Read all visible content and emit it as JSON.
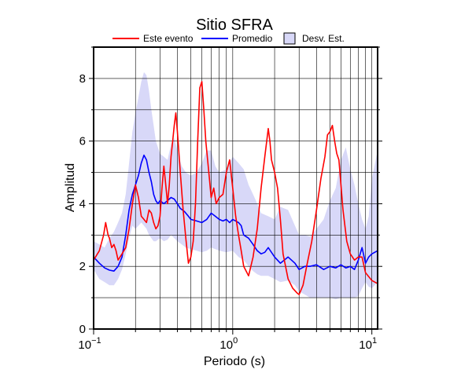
{
  "chart_data": {
    "type": "line",
    "title": "Sitio SFRA",
    "xlabel": "Periodo (s)",
    "ylabel": "Amplitud",
    "xscale": "log",
    "xlim": [
      0.1,
      11
    ],
    "ylim": [
      0,
      9
    ],
    "x_ticks": [
      {
        "base": "10",
        "exp": "−1"
      },
      {
        "base": "10",
        "exp": "0"
      },
      {
        "base": "10",
        "exp": "1"
      }
    ],
    "y_ticks": [
      "0",
      "2",
      "4",
      "6",
      "8"
    ],
    "grid": true,
    "legend": {
      "position": "top",
      "entries": [
        "Este evento",
        "Promedio",
        "Desv. Est."
      ]
    },
    "colors": {
      "event": "#ff0000",
      "mean": "#0000ff",
      "band_fill": "#d8d8f8",
      "band_stroke": "#000000"
    },
    "series": [
      {
        "name": "Este evento",
        "x": [
          0.1,
          0.11,
          0.118,
          0.122,
          0.127,
          0.13,
          0.135,
          0.14,
          0.145,
          0.15,
          0.16,
          0.17,
          0.18,
          0.19,
          0.2,
          0.21,
          0.22,
          0.23,
          0.24,
          0.25,
          0.26,
          0.27,
          0.28,
          0.29,
          0.3,
          0.31,
          0.32,
          0.33,
          0.34,
          0.35,
          0.36,
          0.37,
          0.38,
          0.39,
          0.4,
          0.42,
          0.44,
          0.46,
          0.48,
          0.5,
          0.52,
          0.54,
          0.56,
          0.58,
          0.6,
          0.62,
          0.64,
          0.66,
          0.68,
          0.7,
          0.73,
          0.76,
          0.8,
          0.85,
          0.9,
          0.95,
          1.0,
          1.05,
          1.1,
          1.15,
          1.2,
          1.3,
          1.4,
          1.5,
          1.6,
          1.7,
          1.8,
          1.85,
          1.9,
          2.0,
          2.1,
          2.2,
          2.3,
          2.5,
          2.7,
          2.9,
          3.0,
          3.2,
          3.4,
          3.7,
          4.0,
          4.3,
          4.6,
          4.8,
          5.0,
          5.2,
          5.4,
          5.6,
          5.8,
          6.2,
          6.6,
          7.0,
          7.5,
          8.0,
          8.5,
          9.0,
          10.0,
          11.0
        ],
        "y": [
          2.2,
          2.5,
          3.0,
          3.4,
          3.0,
          2.9,
          2.6,
          2.7,
          2.5,
          2.2,
          2.4,
          2.6,
          3.2,
          4.0,
          4.6,
          4.2,
          3.6,
          3.5,
          3.4,
          3.8,
          3.7,
          3.4,
          3.2,
          3.3,
          3.6,
          4.5,
          5.2,
          4.6,
          4.0,
          4.6,
          5.5,
          6.0,
          6.5,
          6.9,
          6.3,
          5.0,
          3.8,
          2.9,
          2.1,
          2.3,
          2.8,
          4.0,
          6.0,
          7.7,
          7.9,
          7.0,
          6.0,
          5.4,
          4.8,
          4.2,
          4.5,
          4.0,
          4.2,
          4.3,
          5.0,
          5.4,
          4.5,
          3.6,
          3.0,
          2.5,
          2.0,
          1.7,
          2.3,
          3.2,
          4.5,
          5.5,
          6.4,
          6.0,
          5.4,
          5.0,
          4.5,
          3.5,
          2.4,
          1.6,
          1.3,
          1.15,
          1.1,
          1.4,
          2.0,
          2.8,
          3.8,
          4.8,
          5.5,
          6.2,
          6.3,
          6.5,
          6.0,
          5.6,
          5.4,
          3.8,
          2.8,
          2.4,
          2.2,
          2.3,
          2.3,
          1.8,
          1.55,
          1.45
        ]
      },
      {
        "name": "Promedio",
        "x": [
          0.1,
          0.11,
          0.12,
          0.13,
          0.14,
          0.15,
          0.16,
          0.17,
          0.18,
          0.19,
          0.2,
          0.21,
          0.22,
          0.23,
          0.24,
          0.25,
          0.26,
          0.27,
          0.28,
          0.29,
          0.3,
          0.32,
          0.34,
          0.36,
          0.38,
          0.4,
          0.42,
          0.45,
          0.48,
          0.5,
          0.55,
          0.6,
          0.65,
          0.7,
          0.75,
          0.8,
          0.85,
          0.9,
          0.95,
          1.0,
          1.05,
          1.1,
          1.15,
          1.2,
          1.3,
          1.4,
          1.5,
          1.6,
          1.7,
          1.8,
          2.0,
          2.2,
          2.5,
          2.8,
          3.0,
          3.3,
          3.6,
          4.0,
          4.5,
          5.0,
          5.5,
          6.0,
          6.5,
          7.0,
          7.5,
          8.0,
          8.5,
          9.0,
          9.5,
          10.0,
          11.0
        ],
        "y": [
          2.3,
          2.1,
          1.95,
          1.88,
          1.85,
          2.0,
          2.3,
          3.0,
          3.8,
          4.3,
          4.6,
          4.9,
          5.3,
          5.55,
          5.4,
          5.0,
          4.7,
          4.3,
          4.1,
          4.0,
          4.1,
          4.0,
          4.1,
          4.2,
          4.15,
          4.0,
          3.85,
          3.75,
          3.6,
          3.5,
          3.45,
          3.4,
          3.5,
          3.7,
          3.6,
          3.5,
          3.45,
          3.5,
          3.4,
          3.5,
          3.45,
          3.4,
          3.3,
          3.0,
          2.9,
          2.7,
          2.5,
          2.4,
          2.45,
          2.6,
          2.3,
          2.1,
          2.3,
          2.1,
          1.9,
          2.0,
          2.0,
          2.05,
          1.9,
          2.0,
          1.95,
          2.05,
          1.95,
          2.0,
          1.9,
          2.2,
          2.6,
          2.1,
          2.3,
          2.4,
          2.5
        ]
      },
      {
        "name": "Desv. Est.",
        "x": [
          0.1,
          0.11,
          0.12,
          0.13,
          0.14,
          0.15,
          0.16,
          0.17,
          0.18,
          0.19,
          0.2,
          0.21,
          0.22,
          0.23,
          0.24,
          0.25,
          0.26,
          0.27,
          0.28,
          0.3,
          0.32,
          0.34,
          0.36,
          0.38,
          0.4,
          0.43,
          0.46,
          0.5,
          0.55,
          0.6,
          0.65,
          0.7,
          0.75,
          0.8,
          0.9,
          1.0,
          1.1,
          1.2,
          1.3,
          1.4,
          1.5,
          1.6,
          1.8,
          2.0,
          2.2,
          2.5,
          2.8,
          3.0,
          3.3,
          3.6,
          4.0,
          4.5,
          5.0,
          5.5,
          6.0,
          6.5,
          7.0,
          7.5,
          8.0,
          8.5,
          9.0,
          9.5,
          10.0,
          11.0
        ],
        "lower": [
          1.9,
          1.6,
          1.5,
          1.4,
          1.4,
          1.6,
          1.9,
          2.4,
          2.9,
          3.3,
          3.2,
          3.3,
          3.4,
          3.3,
          3.2,
          3.0,
          2.9,
          2.8,
          2.8,
          2.9,
          2.8,
          2.85,
          3.0,
          2.9,
          2.8,
          2.7,
          2.6,
          2.55,
          2.5,
          2.45,
          2.5,
          2.6,
          2.55,
          2.5,
          2.45,
          2.5,
          2.3,
          2.2,
          2.0,
          1.85,
          1.75,
          1.7,
          1.7,
          1.6,
          1.5,
          1.55,
          1.4,
          1.2,
          1.1,
          1.0,
          1.0,
          1.0,
          1.0,
          0.95,
          1.0,
          1.0,
          1.0,
          1.0,
          1.05,
          1.3,
          1.5,
          1.35,
          1.3,
          1.5
        ],
        "upper": [
          2.8,
          2.7,
          2.6,
          2.9,
          3.1,
          3.4,
          3.7,
          4.3,
          5.3,
          6.3,
          6.9,
          7.4,
          7.9,
          8.2,
          8.1,
          7.6,
          7.0,
          6.5,
          6.0,
          5.6,
          5.5,
          5.4,
          5.9,
          6.1,
          5.7,
          5.2,
          5.0,
          4.9,
          5.0,
          5.3,
          5.7,
          5.7,
          5.2,
          5.0,
          5.1,
          5.5,
          5.3,
          5.1,
          4.6,
          4.3,
          4.0,
          3.7,
          3.6,
          3.5,
          3.9,
          3.8,
          3.3,
          3.0,
          3.0,
          2.95,
          3.2,
          3.5,
          4.1,
          4.5,
          5.4,
          5.8,
          5.1,
          4.6,
          4.0,
          3.5,
          3.2,
          3.6,
          4.8,
          5.7
        ]
      }
    ]
  }
}
